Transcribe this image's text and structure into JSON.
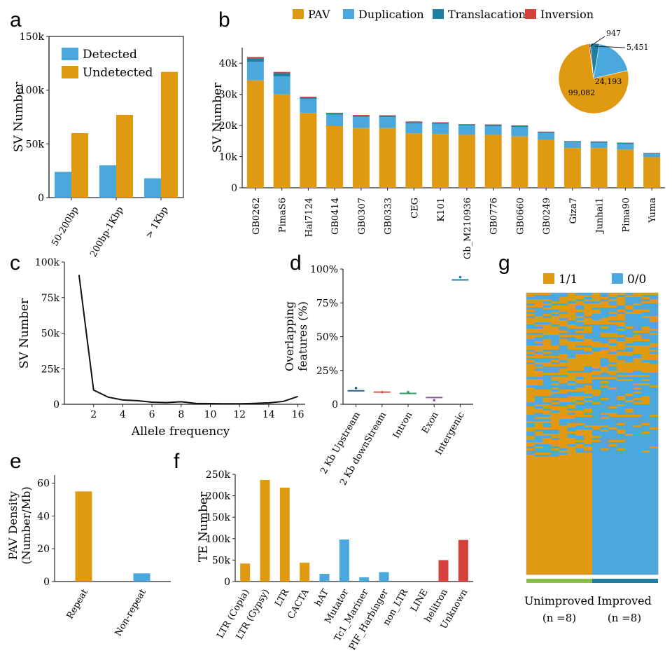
{
  "chart_data": [
    {
      "panel": "a",
      "type": "bar",
      "ylabel": "SV Number",
      "ylim": [
        0,
        150000
      ],
      "yticks": [
        0,
        50000,
        100000,
        150000
      ],
      "ytick_labels": [
        "0",
        "50k",
        "100k",
        "150k"
      ],
      "categories": [
        "50-200bp",
        "200bp-1Kbp",
        "> 1Kbp"
      ],
      "series": [
        {
          "name": "Detected",
          "color": "#4aa8dd",
          "values": [
            24000,
            30000,
            18000
          ]
        },
        {
          "name": "Undetected",
          "color": "#e09a12",
          "values": [
            60000,
            77000,
            117000
          ]
        }
      ],
      "legend": "top-left"
    },
    {
      "panel": "b",
      "type": "bar",
      "stacked": true,
      "ylabel": "SV Number",
      "ylim": [
        0,
        45000
      ],
      "yticks": [
        0,
        10000,
        20000,
        30000,
        40000
      ],
      "ytick_labels": [
        "0",
        "10k",
        "20k",
        "30k",
        "40k"
      ],
      "categories": [
        "GB0262",
        "PimaS6",
        "Hai7124",
        "GB0414",
        "GB0307",
        "GB0333",
        "CEG",
        "K101",
        "Gb_M210936",
        "GB0776",
        "GB0660",
        "GB0249",
        "Giza7",
        "Junhai1",
        "Pima90",
        "Yuma"
      ],
      "series": [
        {
          "name": "PAV",
          "color": "#e09a12",
          "values": [
            34500,
            30000,
            24000,
            19800,
            19200,
            19200,
            17500,
            17300,
            17000,
            17000,
            16500,
            15400,
            12800,
            12800,
            12300,
            9800
          ]
        },
        {
          "name": "Duplication",
          "color": "#4aa8dd",
          "values": [
            6000,
            5800,
            4500,
            3700,
            3600,
            3500,
            3200,
            3200,
            3000,
            2800,
            3000,
            2200,
            1800,
            1700,
            1800,
            1100
          ]
        },
        {
          "name": "Translacation",
          "color": "#1f7fa0",
          "values": [
            1100,
            1000,
            500,
            400,
            400,
            400,
            400,
            400,
            300,
            400,
            400,
            300,
            300,
            300,
            300,
            200
          ]
        },
        {
          "name": "Inversion",
          "color": "#d6403a",
          "values": [
            400,
            400,
            250,
            200,
            200,
            200,
            200,
            150,
            150,
            150,
            150,
            150,
            100,
            100,
            100,
            100
          ]
        }
      ],
      "legend": "top",
      "inset_pie": {
        "type": "pie",
        "labels": [
          "PAV",
          "Duplication",
          "Translacation",
          "Inversion"
        ],
        "values": [
          99082,
          24193,
          5451,
          947
        ],
        "value_labels": [
          "99,082",
          "24,193",
          "5,451",
          "947"
        ],
        "colors": [
          "#e09a12",
          "#4aa8dd",
          "#1f7fa0",
          "#d6403a"
        ]
      }
    },
    {
      "panel": "c",
      "type": "line",
      "xlabel": "Allele frequency",
      "ylabel": "SV Number",
      "xlim": [
        0,
        16.5
      ],
      "ylim": [
        0,
        100000
      ],
      "xticks": [
        2,
        4,
        6,
        8,
        10,
        12,
        14,
        16
      ],
      "yticks": [
        0,
        25000,
        50000,
        75000,
        100000
      ],
      "ytick_labels": [
        "0",
        "25k",
        "50k",
        "75k",
        "100k"
      ],
      "series": [
        {
          "name": "SV",
          "color": "#111111",
          "x": [
            1,
            2,
            3,
            4,
            5,
            6,
            7,
            8,
            9,
            10,
            11,
            12,
            13,
            14,
            15,
            16
          ],
          "y": [
            91000,
            10000,
            5000,
            3000,
            2500,
            1500,
            1200,
            1800,
            600,
            500,
            400,
            400,
            600,
            1000,
            2000,
            5500
          ]
        }
      ]
    },
    {
      "panel": "d",
      "type": "box",
      "ylabel": "Overlapping features (%)",
      "ylim": [
        0,
        1
      ],
      "yticks": [
        0,
        0.25,
        0.5,
        0.75,
        1.0
      ],
      "ytick_labels": [
        "0",
        "25%",
        "50%",
        "75%",
        "100%"
      ],
      "categories": [
        "2 Kb Upstream",
        "2 Kb downStream",
        "Intron",
        "Exon",
        "Intergenic"
      ],
      "series": [
        {
          "name": "median",
          "values": [
            0.1,
            0.09,
            0.08,
            0.05,
            0.92
          ]
        },
        {
          "name": "outlier",
          "values": [
            0.12,
            0.09,
            0.09,
            0.03,
            0.94
          ]
        }
      ],
      "colors": [
        "#2b5d8c",
        "#d55a4a",
        "#3a9a6a",
        "#8a5aa6",
        "#1f7fa0"
      ]
    },
    {
      "panel": "e",
      "type": "bar",
      "ylabel": "PAV Density (Number/Mb)",
      "ylim": [
        0,
        65
      ],
      "yticks": [
        0,
        20,
        40,
        60
      ],
      "ytick_labels": [
        "0",
        "20",
        "40",
        "60"
      ],
      "categories": [
        "Repeat",
        "Non-repeat"
      ],
      "values": [
        55,
        5
      ],
      "colors": [
        "#e09a12",
        "#4aa8dd"
      ]
    },
    {
      "panel": "f",
      "type": "bar",
      "ylabel": "TE Number",
      "ylim": [
        0,
        250000
      ],
      "yticks": [
        0,
        50000,
        100000,
        150000,
        200000,
        250000
      ],
      "ytick_labels": [
        "0",
        "50k",
        "100k",
        "150k",
        "200k",
        "250k"
      ],
      "categories": [
        "LTR (Copia)",
        "LTR (Gypsy)",
        "LTR",
        "CACTA",
        "hAT",
        "Mutator",
        "Tc1_Mariner",
        "PIF_Harbinger",
        "non_LTR",
        "LINE",
        "helitron",
        "Unknown"
      ],
      "values": [
        42000,
        237000,
        219000,
        44000,
        18000,
        98000,
        10000,
        22000,
        0,
        0,
        50000,
        97000
      ],
      "colors": [
        "#e09a12",
        "#e09a12",
        "#e09a12",
        "#e09a12",
        "#4aa8dd",
        "#4aa8dd",
        "#4aa8dd",
        "#4aa8dd",
        "#4aa8dd",
        "#4aa8dd",
        "#d6403a",
        "#d6403a"
      ]
    },
    {
      "panel": "g",
      "type": "heatmap",
      "legend": [
        {
          "label": "1/1",
          "color": "#e09a12"
        },
        {
          "label": "0/0",
          "color": "#4aa8dd"
        }
      ],
      "groups": [
        {
          "name": "Unimproved",
          "n_label": "(n =8)",
          "color": "#8cc04a"
        },
        {
          "name": "Improved",
          "n_label": "(n =8)",
          "color": "#1f7fa0"
        }
      ]
    }
  ],
  "panel_letters": [
    "a",
    "b",
    "c",
    "d",
    "e",
    "f",
    "g"
  ]
}
